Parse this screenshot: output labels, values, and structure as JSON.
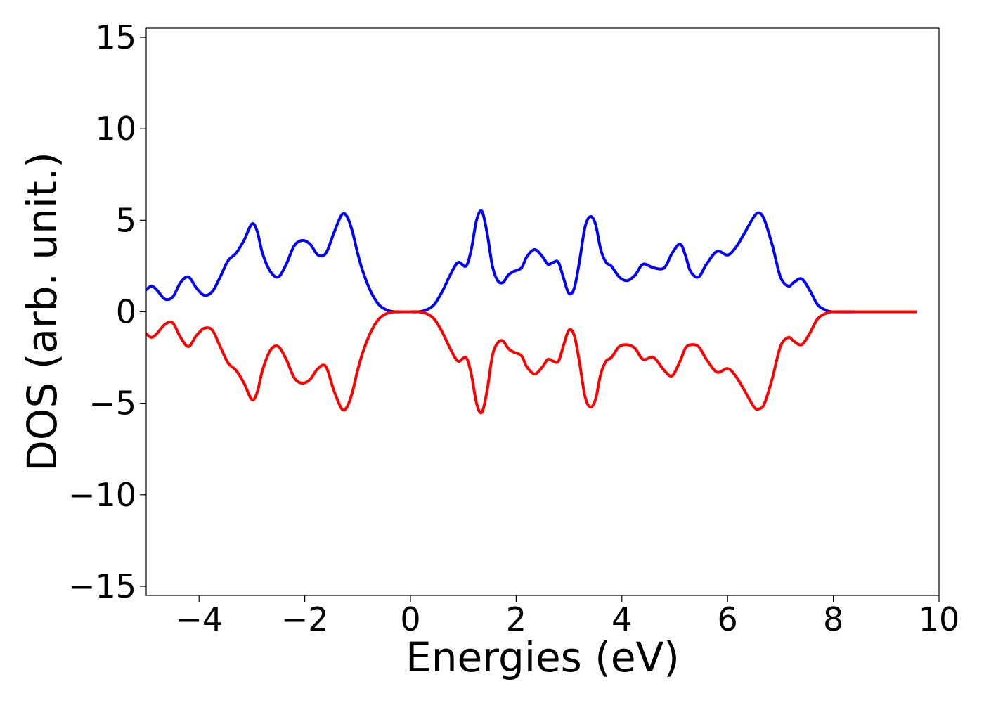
{
  "chart_data": {
    "type": "line",
    "title": "",
    "xlabel": "Energies (eV)",
    "ylabel": "DOS (arb. unit.)",
    "xlim": [
      -5,
      10
    ],
    "ylim": [
      -15.5,
      15.5
    ],
    "xticks": [
      -4,
      -2,
      0,
      2,
      4,
      6,
      8,
      10
    ],
    "yticks": [
      -15,
      -10,
      -5,
      0,
      5,
      10,
      15
    ],
    "xtick_labels": [
      "−4",
      "−2",
      "0",
      "2",
      "4",
      "6",
      "8",
      "10"
    ],
    "ytick_labels": [
      "−15",
      "−10",
      "−5",
      "0",
      "5",
      "10",
      "15"
    ],
    "grid": false,
    "legend": "none",
    "series": [
      {
        "color": "#0000ff",
        "x": [
          -5.0,
          -4.9,
          -4.8,
          -4.65,
          -4.5,
          -4.35,
          -4.2,
          -4.05,
          -3.9,
          -3.75,
          -3.6,
          -3.45,
          -3.3,
          -3.15,
          -3.0,
          -2.9,
          -2.8,
          -2.65,
          -2.5,
          -2.35,
          -2.2,
          -2.05,
          -1.9,
          -1.75,
          -1.6,
          -1.45,
          -1.3,
          -1.2,
          -1.1,
          -1.0,
          -0.9,
          -0.75,
          -0.6,
          -0.45,
          -0.3,
          -0.15,
          0.0,
          0.15,
          0.3,
          0.45,
          0.6,
          0.75,
          0.9,
          1.05,
          1.15,
          1.25,
          1.35,
          1.45,
          1.55,
          1.65,
          1.75,
          1.85,
          1.95,
          2.1,
          2.2,
          2.35,
          2.5,
          2.6,
          2.7,
          2.8,
          2.9,
          3.0,
          3.1,
          3.2,
          3.3,
          3.4,
          3.5,
          3.6,
          3.7,
          3.8,
          3.95,
          4.1,
          4.25,
          4.4,
          4.6,
          4.8,
          4.95,
          5.1,
          5.2,
          5.3,
          5.45,
          5.6,
          5.8,
          6.0,
          6.15,
          6.3,
          6.5,
          6.6,
          6.7,
          6.85,
          7.0,
          7.15,
          7.25,
          7.4,
          7.55,
          7.7,
          7.85,
          8.0,
          8.5,
          9.0,
          9.5,
          9.55
        ],
        "y": [
          1.2,
          1.4,
          1.2,
          0.7,
          0.8,
          1.6,
          1.9,
          1.3,
          0.9,
          1.1,
          1.9,
          2.8,
          3.2,
          3.9,
          4.8,
          4.4,
          3.2,
          2.2,
          1.9,
          2.6,
          3.6,
          3.9,
          3.7,
          3.1,
          3.2,
          4.3,
          5.3,
          5.2,
          4.4,
          3.2,
          2.2,
          1.1,
          0.4,
          0.1,
          0.0,
          0.0,
          0.0,
          0.0,
          0.1,
          0.4,
          1.1,
          2.0,
          2.7,
          2.5,
          3.4,
          5.0,
          5.5,
          4.3,
          2.5,
          1.7,
          1.6,
          2.0,
          2.2,
          2.4,
          3.0,
          3.4,
          3.0,
          2.6,
          2.7,
          2.7,
          1.8,
          1.0,
          1.3,
          2.8,
          4.6,
          5.2,
          4.8,
          3.4,
          2.7,
          2.5,
          1.9,
          1.7,
          2.0,
          2.6,
          2.4,
          2.4,
          3.2,
          3.7,
          3.1,
          2.2,
          1.9,
          2.6,
          3.3,
          3.1,
          3.5,
          4.2,
          5.2,
          5.4,
          5.0,
          3.6,
          1.9,
          1.4,
          1.6,
          1.8,
          1.2,
          0.4,
          0.1,
          0.0,
          0.0,
          0.0,
          0.0,
          0.0
        ]
      },
      {
        "color": "#ff0000",
        "x": [
          -5.0,
          -4.9,
          -4.8,
          -4.65,
          -4.5,
          -4.35,
          -4.2,
          -4.05,
          -3.9,
          -3.75,
          -3.6,
          -3.45,
          -3.3,
          -3.15,
          -3.0,
          -2.9,
          -2.8,
          -2.65,
          -2.5,
          -2.35,
          -2.2,
          -2.05,
          -1.9,
          -1.75,
          -1.6,
          -1.45,
          -1.3,
          -1.2,
          -1.1,
          -1.0,
          -0.9,
          -0.75,
          -0.6,
          -0.45,
          -0.3,
          -0.15,
          0.0,
          0.15,
          0.3,
          0.45,
          0.6,
          0.75,
          0.9,
          1.05,
          1.15,
          1.25,
          1.35,
          1.45,
          1.55,
          1.65,
          1.75,
          1.85,
          1.95,
          2.1,
          2.2,
          2.35,
          2.5,
          2.6,
          2.7,
          2.8,
          2.9,
          3.0,
          3.1,
          3.2,
          3.3,
          3.4,
          3.5,
          3.6,
          3.7,
          3.8,
          3.95,
          4.1,
          4.25,
          4.4,
          4.6,
          4.8,
          4.95,
          5.1,
          5.2,
          5.3,
          5.45,
          5.6,
          5.8,
          6.0,
          6.15,
          6.3,
          6.5,
          6.6,
          6.7,
          6.85,
          7.0,
          7.15,
          7.25,
          7.4,
          7.55,
          7.7,
          7.85,
          8.0,
          8.5,
          9.0,
          9.5,
          9.55
        ],
        "y": [
          -1.2,
          -1.4,
          -1.2,
          -0.7,
          -0.6,
          -1.4,
          -1.9,
          -1.3,
          -0.9,
          -1.0,
          -1.9,
          -2.8,
          -3.2,
          -3.9,
          -4.8,
          -4.4,
          -3.2,
          -2.1,
          -1.9,
          -2.6,
          -3.6,
          -3.9,
          -3.7,
          -3.1,
          -3.0,
          -4.3,
          -5.3,
          -5.2,
          -4.4,
          -3.2,
          -2.2,
          -1.1,
          -0.4,
          -0.1,
          0.0,
          0.0,
          0.0,
          0.0,
          -0.1,
          -0.4,
          -1.1,
          -2.0,
          -2.7,
          -2.5,
          -3.4,
          -5.0,
          -5.5,
          -4.3,
          -2.4,
          -1.7,
          -1.6,
          -2.0,
          -2.2,
          -2.4,
          -3.0,
          -3.4,
          -3.0,
          -2.6,
          -2.7,
          -2.7,
          -1.8,
          -1.0,
          -1.3,
          -2.8,
          -4.6,
          -5.2,
          -4.8,
          -3.4,
          -2.7,
          -2.5,
          -1.9,
          -1.8,
          -2.0,
          -2.6,
          -2.5,
          -3.2,
          -3.5,
          -2.7,
          -2.0,
          -1.8,
          -1.9,
          -2.6,
          -3.3,
          -3.1,
          -3.5,
          -4.2,
          -5.2,
          -5.3,
          -5.0,
          -3.6,
          -1.9,
          -1.4,
          -1.6,
          -1.8,
          -1.2,
          -0.4,
          -0.1,
          0.0,
          0.0,
          0.0,
          0.0,
          0.0
        ]
      }
    ]
  }
}
